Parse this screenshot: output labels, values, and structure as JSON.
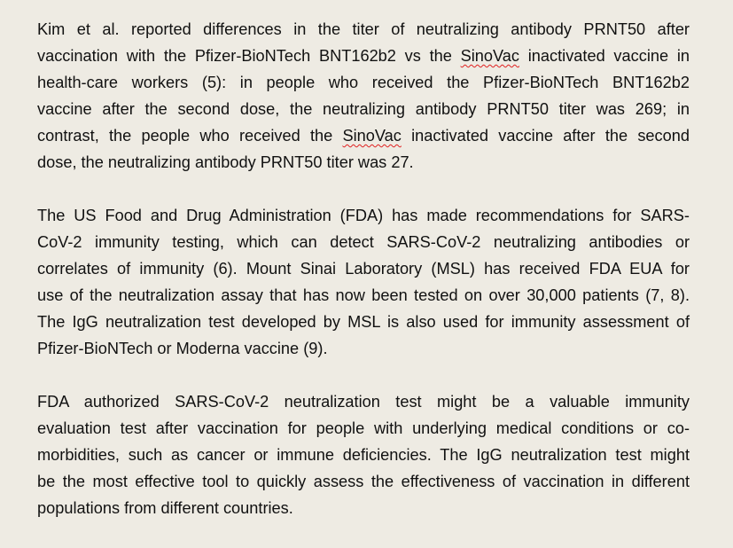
{
  "paragraphs": [
    {
      "lines": [
        [
          "Kim et al. reported differences in the titer of neutralizing antibody PRNT50 after"
        ],
        [
          "vaccination with the Pfizer-BioNTech BNT162b2 vs the ",
          "SinoVac",
          " inactivated vaccine in"
        ],
        [
          "health-care workers (5): in people who received the Pfizer-BioNTech BNT162b2"
        ],
        [
          "vaccine after the second dose, the neutralizing antibody PRNT50 titer was 269; in"
        ],
        [
          "contrast, the people who received the ",
          "SinoVac",
          " inactivated vaccine after the second"
        ],
        [
          "dose, the neutralizing antibody PRNT50 titer was 27."
        ]
      ]
    },
    {
      "lines": [
        [
          "The US Food and Drug Administration (FDA) has made recommendations for SARS-"
        ],
        [
          "CoV-2 immunity testing, which can detect SARS-CoV-2 neutralizing antibodies or"
        ],
        [
          "correlates of immunity (6). Mount Sinai Laboratory (MSL) has received FDA EUA for"
        ],
        [
          "use of the neutralization assay that has now been tested on over 30,000 patients (7, 8)."
        ],
        [
          "The IgG neutralization test developed by MSL is also used for immunity assessment of"
        ],
        [
          "Pfizer-BioNTech or Moderna vaccine (9)."
        ]
      ]
    },
    {
      "lines": [
        [
          "FDA authorized SARS-CoV-2 neutralization test might be a valuable immunity"
        ],
        [
          "evaluation test after vaccination for people with underlying medical conditions or co-"
        ],
        [
          "morbidities, such as cancer or immune deficiencies. The IgG neutralization test might"
        ],
        [
          "be the most effective tool to quickly assess the effectiveness of vaccination in different"
        ],
        [
          "populations from different countries."
        ]
      ]
    }
  ],
  "spellcheck_flagged_word": "SinoVac",
  "colors": {
    "background": "#eeebe3",
    "text": "#111111",
    "spellcheck_underline": "#e02020"
  }
}
